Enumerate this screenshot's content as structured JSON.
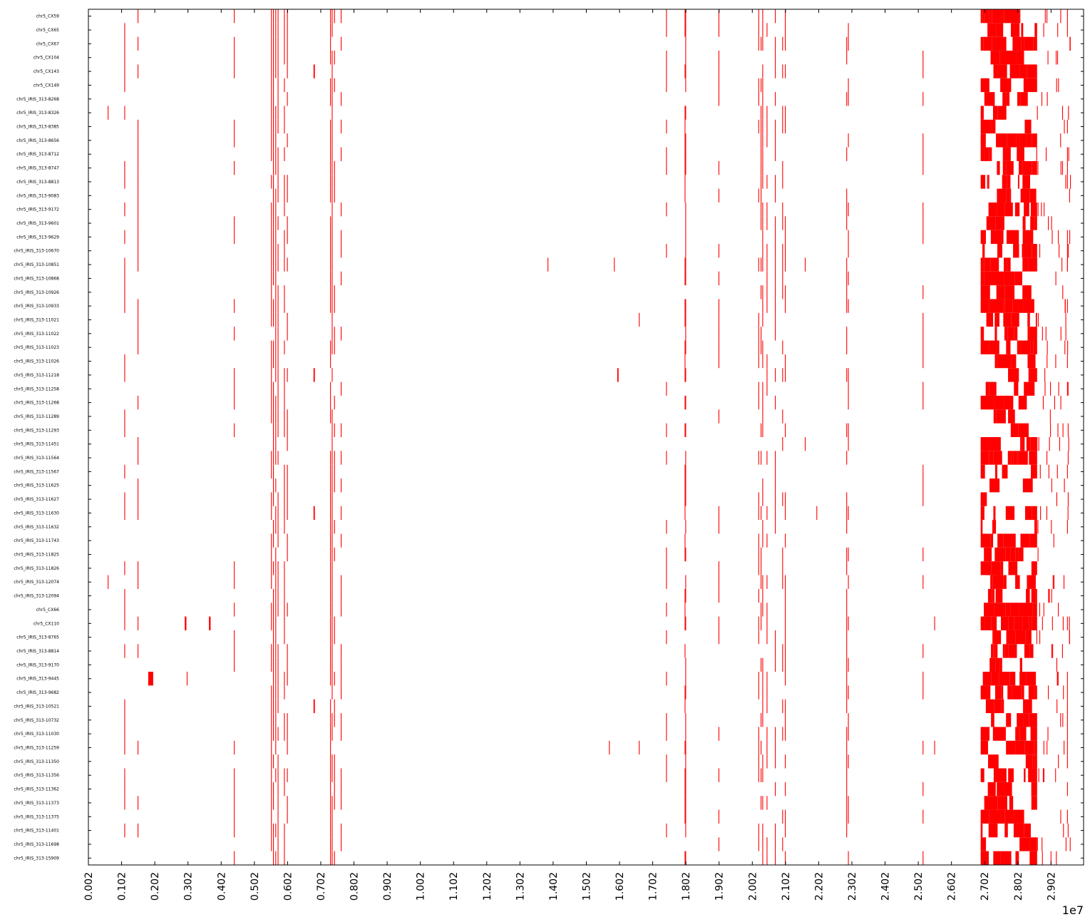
{
  "chart_data": {
    "type": "heatmap",
    "title": "",
    "xlabel": "",
    "ylabel": "",
    "x_multiplier_label": "1e7",
    "x_scale": 10000000,
    "xlim": [
      0.002,
      0.3
    ],
    "grid": false,
    "mark_color": "#ff0000",
    "x_ticks": [
      "0.002",
      "0.102",
      "0.202",
      "0.302",
      "0.402",
      "0.502",
      "0.602",
      "0.702",
      "0.802",
      "0.902",
      "1.002",
      "1.102",
      "1.202",
      "1.302",
      "1.402",
      "1.502",
      "1.602",
      "1.702",
      "1.802",
      "1.902",
      "2.002",
      "2.102",
      "2.202",
      "2.302",
      "2.402",
      "2.502",
      "2.602",
      "2.702",
      "2.802",
      "2.902"
    ],
    "x_tick_values": [
      0.002,
      0.102,
      0.202,
      0.302,
      0.402,
      0.502,
      0.602,
      0.702,
      0.802,
      0.902,
      1.002,
      1.102,
      1.202,
      1.302,
      1.402,
      1.502,
      1.602,
      1.702,
      1.802,
      1.902,
      2.002,
      2.102,
      2.202,
      2.302,
      2.402,
      2.502,
      2.602,
      2.702,
      2.802,
      2.902
    ],
    "rows": [
      "chr5_CX59",
      "chr5_CX65",
      "chr5_CX67",
      "chr5_CX104",
      "chr5_CX143",
      "chr5_CX149",
      "chr5_IRIS_313-8268",
      "chr5_IRIS_313-8326",
      "chr5_IRIS_313-8385",
      "chr5_IRIS_313-8656",
      "chr5_IRIS_313-8712",
      "chr5_IRIS_313-8747",
      "chr5_IRIS_313-8813",
      "chr5_IRIS_313-9083",
      "chr5_IRIS_313-9172",
      "chr5_IRIS_313-9601",
      "chr5_IRIS_313-9629",
      "chr5_IRIS_313-10670",
      "chr5_IRIS_313-10851",
      "chr5_IRIS_313-10868",
      "chr5_IRIS_313-10926",
      "chr5_IRIS_313-10933",
      "chr5_IRIS_313-11021",
      "chr5_IRIS_313-11022",
      "chr5_IRIS_313-11023",
      "chr5_IRIS_313-11026",
      "chr5_IRIS_313-11218",
      "chr5_IRIS_313-11258",
      "chr5_IRIS_313-11268",
      "chr5_IRIS_313-11289",
      "chr5_IRIS_313-11293",
      "chr5_IRIS_313-11451",
      "chr5_IRIS_313-11564",
      "chr5_IRIS_313-11567",
      "chr5_IRIS_313-11625",
      "chr5_IRIS_313-11627",
      "chr5_IRIS_313-11630",
      "chr5_IRIS_313-11632",
      "chr5_IRIS_313-11743",
      "chr5_IRIS_313-11825",
      "chr5_IRIS_313-11826",
      "chr5_IRIS_313-12074",
      "chr5_IRIS_313-12094",
      "chr5_CX66",
      "chr5_CX110",
      "chr5_IRIS_313-8765",
      "chr5_IRIS_313-8814",
      "chr5_IRIS_313-9170",
      "chr5_IRIS_313-9445",
      "chr5_IRIS_313-9682",
      "chr5_IRIS_313-10521",
      "chr5_IRIS_313-10732",
      "chr5_IRIS_313-11030",
      "chr5_IRIS_313-11259",
      "chr5_IRIS_313-11350",
      "chr5_IRIS_313-11356",
      "chr5_IRIS_313-11362",
      "chr5_IRIS_313-11373",
      "chr5_IRIS_313-11375",
      "chr5_IRIS_313-11401",
      "chr5_IRIS_313-11698",
      "chr5_IRIS_313-15909"
    ],
    "common_sites": [
      1.102,
      1.502,
      4.402,
      5.522,
      5.582,
      5.652,
      5.722,
      5.912,
      6.002,
      7.302,
      7.352,
      7.422,
      7.622,
      17.422,
      17.982,
      18.002,
      19.002,
      20.202,
      20.272,
      20.322,
      20.452,
      20.702,
      20.922,
      21.002,
      22.852,
      22.902,
      25.152,
      29.502
    ],
    "common_presence": [
      0.4,
      0.45,
      0.5,
      0.8,
      0.85,
      0.8,
      0.75,
      0.7,
      0.55,
      0.85,
      0.9,
      0.5,
      0.5,
      0.5,
      0.5,
      0.6,
      0.45,
      0.5,
      0.45,
      0.7,
      0.55,
      0.45,
      0.5,
      0.5,
      0.65,
      0.4,
      0.45,
      0.45
    ],
    "seed": 20240517,
    "extra_blocks": [
      {
        "row": 7,
        "x": [
          0.0602,
          0.0622
        ]
      },
      {
        "row": 41,
        "x": [
          0.0602,
          0.0622
        ]
      },
      {
        "row": 48,
        "x": [
          0.1822,
          0.1972
        ]
      },
      {
        "row": 44,
        "x": [
          0.2922,
          0.2972
        ]
      },
      {
        "row": 44,
        "x": [
          0.3652,
          0.3702
        ]
      },
      {
        "row": 48,
        "x": [
          0.2982,
          0.3002
        ]
      },
      {
        "row": 18,
        "x": [
          1.3852,
          1.3872
        ]
      },
      {
        "row": 18,
        "x": [
          1.5852,
          1.5872
        ]
      },
      {
        "row": 26,
        "x": [
          1.5952,
          1.5992
        ]
      },
      {
        "row": 22,
        "x": [
          1.6602,
          1.6622
        ]
      },
      {
        "row": 53,
        "x": [
          1.5702,
          1.5722
        ]
      },
      {
        "row": 53,
        "x": [
          1.6602,
          1.6622
        ]
      },
      {
        "row": 18,
        "x": [
          2.1602,
          2.1622
        ]
      },
      {
        "row": 31,
        "x": [
          2.1602,
          2.1622
        ]
      },
      {
        "row": 36,
        "x": [
          2.1952,
          2.1972
        ]
      },
      {
        "row": 44,
        "x": [
          2.5502,
          2.5522
        ]
      },
      {
        "row": 53,
        "x": [
          2.5502,
          2.5522
        ]
      },
      {
        "row": 4,
        "x": [
          0.6802,
          0.6842
        ]
      },
      {
        "row": 26,
        "x": [
          0.6802,
          0.6842
        ]
      },
      {
        "row": 36,
        "x": [
          0.6802,
          0.6842
        ]
      },
      {
        "row": 50,
        "x": [
          0.6802,
          0.6842
        ]
      }
    ],
    "heavy_region": [
      2.69,
      2.86
    ],
    "heavy_presence": 0.55
  }
}
